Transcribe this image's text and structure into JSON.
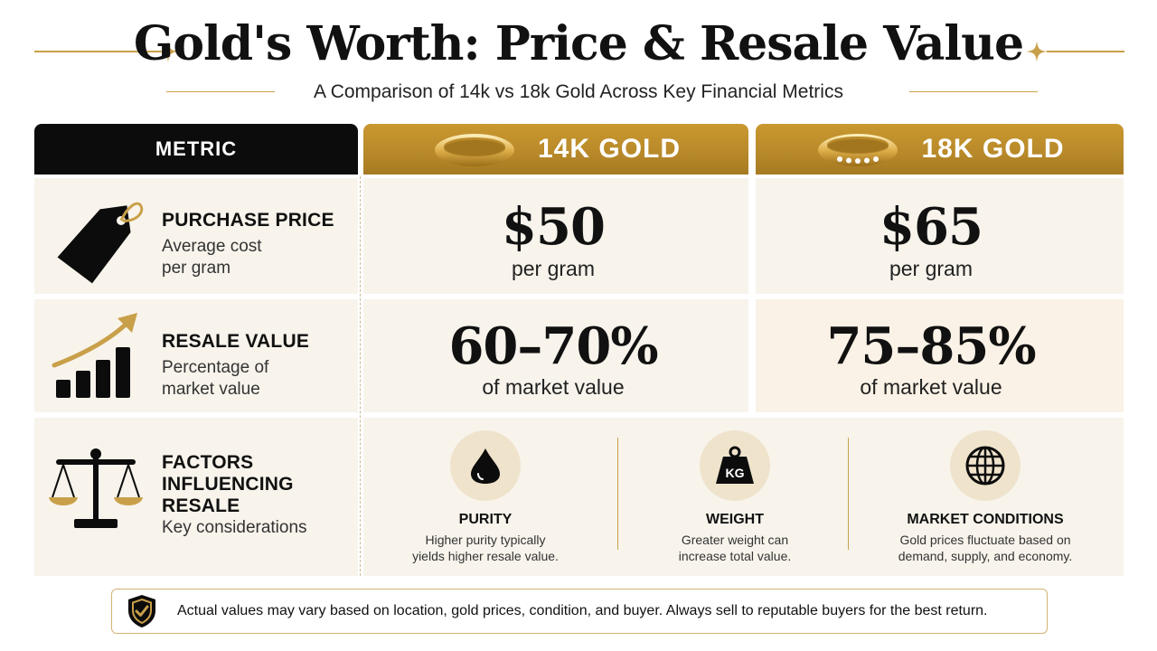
{
  "title": "Gold's Worth: Price & Resale Value",
  "subtitle": "A Comparison of 14k vs 18k Gold Across Key Financial Metrics",
  "colors": {
    "gold": "#c9a04a",
    "gold_header": "#b98a2a",
    "black": "#0c0c0c",
    "cell_bg": "#f8f4ec"
  },
  "header": {
    "metric": "METRIC",
    "col14": "14K GOLD",
    "col18": "18K GOLD"
  },
  "rows": {
    "purchase": {
      "icon": "price-tag-icon",
      "title": "PURCHASE PRICE",
      "sub1": "Average cost",
      "sub2": "per gram",
      "value14": "$50",
      "unit14": "per gram",
      "value18": "$65",
      "unit18": "per gram"
    },
    "resale": {
      "icon": "growth-chart-icon",
      "title": "RESALE VALUE",
      "sub1": "Percentage of",
      "sub2": "market value",
      "value14": "60–70%",
      "unit14": "of market value",
      "value18": "75–85%",
      "unit18": "of market value"
    },
    "factors": {
      "icon": "scales-icon",
      "title1": "FACTORS",
      "title2": "INFLUENCING",
      "title3": "RESALE",
      "sub": "Key considerations",
      "items": [
        {
          "icon": "droplet-icon",
          "title": "PURITY",
          "desc1": "Higher purity typically",
          "desc2": "yields higher resale value."
        },
        {
          "icon": "weight-kg-icon",
          "title": "WEIGHT",
          "badge": "KG",
          "desc1": "Greater weight can",
          "desc2": "increase total value."
        },
        {
          "icon": "globe-icon",
          "title": "MARKET CONDITIONS",
          "desc1": "Gold prices fluctuate based on",
          "desc2": "demand, supply, and economy."
        }
      ]
    }
  },
  "note": {
    "icon": "shield-check-icon",
    "text": "Actual values may vary based on location, gold prices, condition, and buyer. Always sell to reputable buyers for the best return."
  }
}
